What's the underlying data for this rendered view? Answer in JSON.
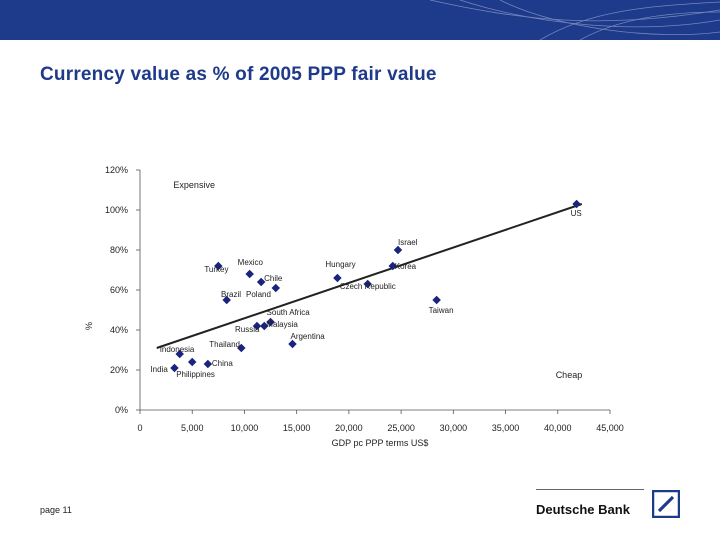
{
  "slide": {
    "title": "Currency value as % of 2005 PPP fair value",
    "page_label": "page 11",
    "brand": "Deutsche Bank"
  },
  "colors": {
    "title": "#1f3a8a",
    "marker": "#1a237e",
    "banner": "#1e3a8a"
  },
  "chart_data": {
    "type": "scatter",
    "xlabel": "GDP pc PPP terms US$",
    "ylabel": "%",
    "xlim": [
      0,
      45000
    ],
    "ylim": [
      0,
      120
    ],
    "x_ticks": [
      0,
      5000,
      10000,
      15000,
      20000,
      25000,
      30000,
      35000,
      40000,
      45000
    ],
    "x_tick_labels": [
      "0",
      "5,000",
      "10,000",
      "15,000",
      "20,000",
      "25,000",
      "30,000",
      "35,000",
      "40,000",
      "45,000"
    ],
    "y_ticks": [
      0,
      20,
      40,
      60,
      80,
      100,
      120
    ],
    "y_tick_labels": [
      "0%",
      "20%",
      "40%",
      "60%",
      "80%",
      "100%",
      "120%"
    ],
    "grid": false,
    "annotations": [
      {
        "text": "Expensive",
        "x": 3200,
        "y": 111
      },
      {
        "text": "Cheap",
        "x": 39800,
        "y": 16
      }
    ],
    "trendline": {
      "x": [
        1600,
        42300
      ],
      "y": [
        31,
        103
      ]
    },
    "points": [
      {
        "label": "US",
        "x": 41800,
        "y": 103
      },
      {
        "label": "Israel",
        "x": 24700,
        "y": 80
      },
      {
        "label": "Korea",
        "x": 24200,
        "y": 72
      },
      {
        "label": "Hungary",
        "x": 18900,
        "y": 66
      },
      {
        "label": "Czech Republic",
        "x": 21800,
        "y": 63
      },
      {
        "label": "Taiwan",
        "x": 28400,
        "y": 55
      },
      {
        "label": "Mexico",
        "x": 10500,
        "y": 68
      },
      {
        "label": "Turkey",
        "x": 7500,
        "y": 72
      },
      {
        "label": "Chile",
        "x": 11600,
        "y": 64
      },
      {
        "label": "Poland",
        "x": 13000,
        "y": 61
      },
      {
        "label": "Brazil",
        "x": 8300,
        "y": 55
      },
      {
        "label": "South Africa",
        "x": 12500,
        "y": 44
      },
      {
        "label": "Malaysia",
        "x": 11900,
        "y": 42
      },
      {
        "label": "Russia",
        "x": 11200,
        "y": 42
      },
      {
        "label": "Argentina",
        "x": 14600,
        "y": 33
      },
      {
        "label": "Thailand",
        "x": 9700,
        "y": 31
      },
      {
        "label": "Indonesia",
        "x": 3800,
        "y": 28
      },
      {
        "label": "China",
        "x": 6500,
        "y": 23
      },
      {
        "label": "India",
        "x": 3300,
        "y": 21
      },
      {
        "label": "Philippines",
        "x": 5000,
        "y": 24
      }
    ]
  }
}
